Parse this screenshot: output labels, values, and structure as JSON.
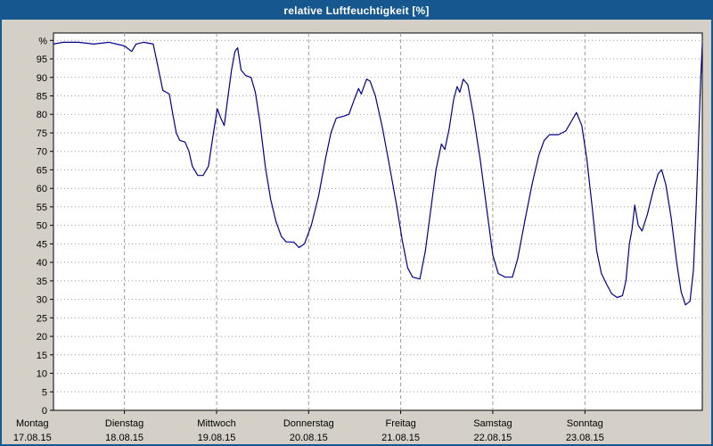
{
  "window": {
    "title": "relative Luftfeuchtigkeit [%]",
    "title_bar_color": "#15578e",
    "border_color": "#15578e",
    "background_color": "#d4d0c8"
  },
  "chart_data": {
    "type": "line",
    "title": "relative Luftfeuchtigkeit [%]",
    "ylabel_top": "%",
    "ylim": [
      0,
      102
    ],
    "x_range_hours": [
      5.5,
      174.6
    ],
    "grid": true,
    "legend": "none",
    "plot_bg": "#ffffff",
    "line_color": "#00008b",
    "gridline_color": "#9a9a9a",
    "y_ticks": [
      {
        "label": "%",
        "value": 100
      },
      {
        "label": "95",
        "value": 95
      },
      {
        "label": "90",
        "value": 90
      },
      {
        "label": "85",
        "value": 85
      },
      {
        "label": "80",
        "value": 80
      },
      {
        "label": "75",
        "value": 75
      },
      {
        "label": "70",
        "value": 70
      },
      {
        "label": "65",
        "value": 65
      },
      {
        "label": "60",
        "value": 60
      },
      {
        "label": "55",
        "value": 55
      },
      {
        "label": "50",
        "value": 50
      },
      {
        "label": "45",
        "value": 45
      },
      {
        "label": "40",
        "value": 40
      },
      {
        "label": "35",
        "value": 35
      },
      {
        "label": "30",
        "value": 30
      },
      {
        "label": "25",
        "value": 25
      },
      {
        "label": "20",
        "value": 20
      },
      {
        "label": "15",
        "value": 15
      },
      {
        "label": "10",
        "value": 10
      },
      {
        "label": "5",
        "value": 5
      },
      {
        "label": "0",
        "value": 0
      }
    ],
    "x_labels": [
      {
        "day": "Montag",
        "date": "17.08.15",
        "t": 0
      },
      {
        "day": "Dienstag",
        "date": "18.08.15",
        "t": 24
      },
      {
        "day": "Mittwoch",
        "date": "19.08.15",
        "t": 48
      },
      {
        "day": "Donnerstag",
        "date": "20.08.15",
        "t": 72
      },
      {
        "day": "Freitag",
        "date": "21.08.15",
        "t": 96
      },
      {
        "day": "Samstag",
        "date": "22.08.15",
        "t": 120
      },
      {
        "day": "Sonntag",
        "date": "23.08.15",
        "t": 144
      }
    ],
    "day_gridlines_t": [
      24,
      48,
      72,
      96,
      120,
      144
    ],
    "series": [
      {
        "name": "relative Luftfeuchtigkeit [%]",
        "points": [
          [
            5.5,
            99
          ],
          [
            8,
            99.5
          ],
          [
            12,
            99.5
          ],
          [
            16,
            99
          ],
          [
            20,
            99.5
          ],
          [
            24,
            98.5
          ],
          [
            25.9,
            97
          ],
          [
            27,
            99
          ],
          [
            29,
            99.5
          ],
          [
            31.5,
            99
          ],
          [
            32.9,
            92
          ],
          [
            34,
            86.5
          ],
          [
            35.7,
            85.5
          ],
          [
            36.6,
            80
          ],
          [
            37.5,
            75
          ],
          [
            38.4,
            73
          ],
          [
            39.8,
            72.5
          ],
          [
            40.8,
            70
          ],
          [
            41.7,
            66
          ],
          [
            43.1,
            63.5
          ],
          [
            44.5,
            63.5
          ],
          [
            45.9,
            66
          ],
          [
            47.2,
            75
          ],
          [
            48.2,
            81.5
          ],
          [
            49.1,
            79
          ],
          [
            50,
            77
          ],
          [
            51,
            85
          ],
          [
            51.9,
            92
          ],
          [
            52.8,
            97
          ],
          [
            53.5,
            98
          ],
          [
            54.4,
            92
          ],
          [
            55.6,
            90.5
          ],
          [
            57,
            90
          ],
          [
            58.1,
            86
          ],
          [
            59.3,
            78
          ],
          [
            60.7,
            66
          ],
          [
            62.1,
            57
          ],
          [
            63.5,
            51
          ],
          [
            64.9,
            47
          ],
          [
            66.2,
            45.5
          ],
          [
            68.1,
            45.5
          ],
          [
            69.5,
            44
          ],
          [
            70.9,
            45
          ],
          [
            72.7,
            50
          ],
          [
            74.6,
            58
          ],
          [
            76.4,
            68
          ],
          [
            77.8,
            75
          ],
          [
            79.2,
            79
          ],
          [
            81.1,
            79.5
          ],
          [
            82.5,
            80
          ],
          [
            83.9,
            84
          ],
          [
            85,
            87
          ],
          [
            85.7,
            85.5
          ],
          [
            87.1,
            89.5
          ],
          [
            88,
            89
          ],
          [
            89.4,
            85
          ],
          [
            91.3,
            76
          ],
          [
            93.1,
            66
          ],
          [
            95,
            55
          ],
          [
            96.4,
            46
          ],
          [
            97.8,
            38.5
          ],
          [
            99.1,
            36
          ],
          [
            101,
            35.5
          ],
          [
            102.4,
            43
          ],
          [
            103.8,
            54
          ],
          [
            105.2,
            65
          ],
          [
            106.6,
            72
          ],
          [
            107.5,
            70.5
          ],
          [
            108.6,
            76
          ],
          [
            109.8,
            84
          ],
          [
            110.7,
            87.5
          ],
          [
            111.4,
            86
          ],
          [
            112.3,
            89.5
          ],
          [
            113.5,
            88
          ],
          [
            114.9,
            80
          ],
          [
            116.7,
            68
          ],
          [
            118.6,
            53
          ],
          [
            120,
            42
          ],
          [
            121.4,
            37
          ],
          [
            123.2,
            36
          ],
          [
            125.1,
            36
          ],
          [
            126.5,
            41
          ],
          [
            128.3,
            51
          ],
          [
            130.2,
            61
          ],
          [
            132,
            69
          ],
          [
            133.4,
            73
          ],
          [
            134.8,
            74.5
          ],
          [
            137.1,
            74.5
          ],
          [
            139,
            75.5
          ],
          [
            140.4,
            78
          ],
          [
            141.8,
            80.5
          ],
          [
            143.2,
            77
          ],
          [
            144.5,
            68
          ],
          [
            145.9,
            55
          ],
          [
            147.1,
            43
          ],
          [
            148.3,
            37
          ],
          [
            149.7,
            34
          ],
          [
            151,
            31.5
          ],
          [
            152.4,
            30.5
          ],
          [
            153.8,
            31
          ],
          [
            154.7,
            35
          ],
          [
            155.6,
            45
          ],
          [
            156.3,
            49
          ],
          [
            157,
            55.5
          ],
          [
            157.9,
            50
          ],
          [
            158.9,
            48.5
          ],
          [
            160.3,
            53
          ],
          [
            161.7,
            59
          ],
          [
            163.1,
            64
          ],
          [
            164,
            65
          ],
          [
            165.1,
            61
          ],
          [
            166.5,
            52
          ],
          [
            167.9,
            40
          ],
          [
            169.1,
            32
          ],
          [
            170.2,
            28.5
          ],
          [
            171.4,
            29.5
          ],
          [
            172.3,
            38
          ],
          [
            173,
            55
          ],
          [
            173.7,
            75
          ],
          [
            174.2,
            90
          ],
          [
            174.6,
            99
          ]
        ]
      }
    ]
  }
}
